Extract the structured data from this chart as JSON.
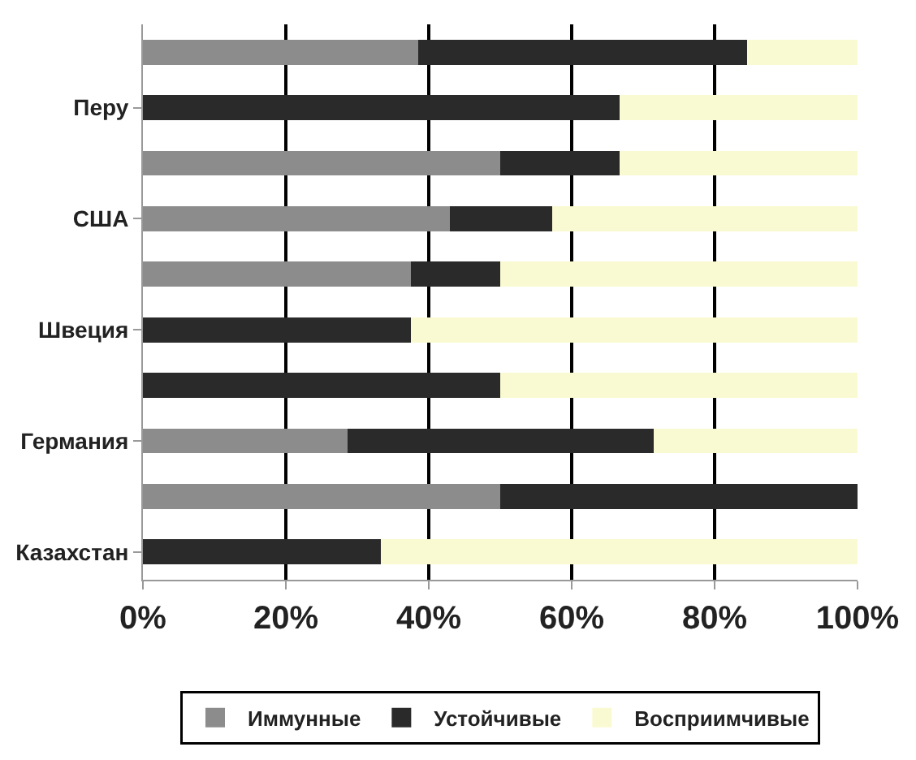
{
  "chart_data": {
    "type": "bar",
    "orientation": "horizontal",
    "stacked": true,
    "categories": [
      null,
      "Перу",
      null,
      "США",
      null,
      "Швеция",
      null,
      "Германия",
      null,
      "Казахстан"
    ],
    "series": [
      {
        "name": "Иммунные",
        "color": "#8c8c8c",
        "values": [
          38.5,
          0,
          50,
          43,
          37.5,
          0,
          0,
          28.6,
          50,
          0
        ]
      },
      {
        "name": "Устойчивые",
        "color": "#2a2a2a",
        "values": [
          46.1,
          66.7,
          16.7,
          14.3,
          12.5,
          37.5,
          50,
          42.9,
          50,
          33.3
        ]
      },
      {
        "name": "Восприимчивые",
        "color": "#fafad2",
        "values": [
          15.4,
          33.3,
          33.3,
          42.7,
          50,
          62.5,
          50,
          28.5,
          0,
          66.7
        ]
      }
    ],
    "xlim": [
      0,
      100
    ],
    "xticks": [
      {
        "value": 0,
        "label": "0%"
      },
      {
        "value": 20,
        "label": "20%"
      },
      {
        "value": 40,
        "label": "40%"
      },
      {
        "value": 60,
        "label": "60%"
      },
      {
        "value": 80,
        "label": "80%"
      },
      {
        "value": 100,
        "label": "100%"
      }
    ],
    "grid": "x",
    "legend": "bottom"
  }
}
